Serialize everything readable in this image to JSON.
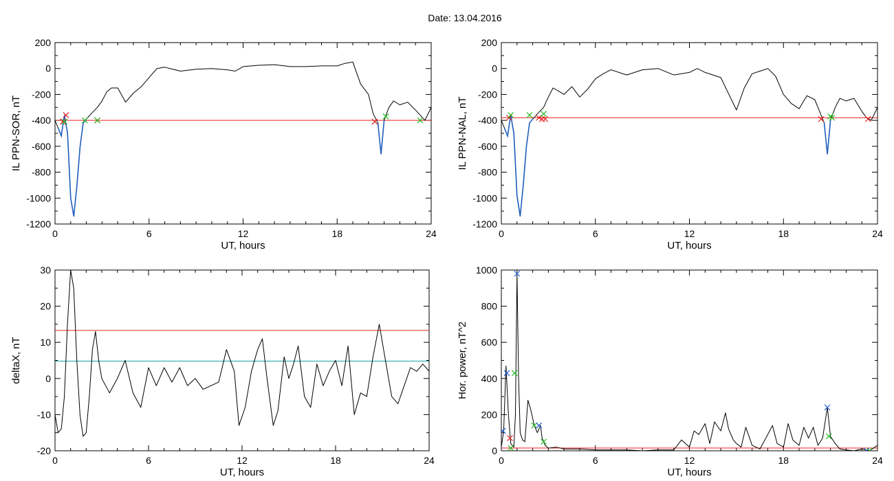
{
  "header": {
    "date_label": "Date:",
    "date_value": "13.04.2016"
  },
  "colors": {
    "trace": "#000000",
    "threshold_red": "#e8231c",
    "threshold_cyan": "#1aa3a3",
    "event_blue": "#1f5fbf",
    "marker_red": "#e02020",
    "marker_green": "#22bb22",
    "marker_blue": "#2060d0"
  },
  "chart_data": [
    {
      "id": "ppn-sor",
      "type": "line",
      "xlabel": "UT, hours",
      "ylabel": "IL PPN-SOR, nT",
      "xlim": [
        0,
        24
      ],
      "ylim": [
        -1200,
        200
      ],
      "xticks": [
        0,
        6,
        12,
        18,
        24
      ],
      "yticks": [
        -1200,
        -1000,
        -800,
        -600,
        -400,
        -200,
        0,
        200
      ],
      "x": [
        0,
        0.2,
        0.4,
        0.6,
        0.8,
        1.0,
        1.2,
        1.4,
        1.6,
        1.8,
        2.0,
        2.3,
        2.7,
        3.0,
        3.3,
        3.6,
        4.0,
        4.5,
        5.0,
        5.5,
        6.0,
        6.5,
        7.0,
        8.0,
        9.0,
        10.0,
        11.0,
        11.5,
        12.0,
        13.0,
        14.0,
        15.0,
        16.0,
        17.0,
        18.0,
        18.5,
        19.0,
        19.5,
        20.0,
        20.3,
        20.6,
        20.8,
        21.0,
        21.3,
        21.6,
        22.0,
        22.5,
        23.0,
        23.3,
        23.6,
        24.0
      ],
      "y": [
        -400,
        -460,
        -520,
        -360,
        -500,
        -1000,
        -1140,
        -900,
        -600,
        -420,
        -390,
        -350,
        -300,
        -250,
        -180,
        -150,
        -150,
        -260,
        -190,
        -140,
        -70,
        0,
        10,
        -20,
        -5,
        0,
        -10,
        -20,
        15,
        25,
        30,
        15,
        15,
        20,
        20,
        40,
        50,
        -120,
        -200,
        -350,
        -420,
        -660,
        -400,
        -300,
        -250,
        -280,
        -260,
        -320,
        -360,
        -400,
        -300
      ],
      "events": [
        {
          "x": [
            0.1,
            1.4
          ],
          "color": "event_blue"
        },
        {
          "x": [
            1.4,
            2.0
          ],
          "color": "event_blue"
        },
        {
          "x": [
            20.4,
            21.0
          ],
          "color": "event_blue"
        }
      ],
      "thresholds": [
        {
          "y": -400,
          "color": "threshold_red"
        }
      ],
      "markers": [
        {
          "x": 0.5,
          "y": -410,
          "color": "marker_red"
        },
        {
          "x": 0.7,
          "y": -360,
          "color": "marker_red"
        },
        {
          "x": 0.6,
          "y": -410,
          "color": "marker_green"
        },
        {
          "x": 1.9,
          "y": -400,
          "color": "marker_green"
        },
        {
          "x": 2.7,
          "y": -400,
          "color": "marker_red"
        },
        {
          "x": 2.7,
          "y": -400,
          "color": "marker_green"
        },
        {
          "x": 20.4,
          "y": -410,
          "color": "marker_red"
        },
        {
          "x": 21.1,
          "y": -370,
          "color": "marker_green"
        },
        {
          "x": 23.3,
          "y": -400,
          "color": "marker_green"
        }
      ]
    },
    {
      "id": "ppn-nal",
      "type": "line",
      "xlabel": "UT, hours",
      "ylabel": "IL PPN-NAL, nT",
      "xlim": [
        0,
        24
      ],
      "ylim": [
        -1200,
        200
      ],
      "xticks": [
        0,
        6,
        12,
        18,
        24
      ],
      "yticks": [
        -1200,
        -1000,
        -800,
        -600,
        -400,
        -200,
        0,
        200
      ],
      "x": [
        0,
        0.2,
        0.4,
        0.6,
        0.8,
        1.0,
        1.2,
        1.4,
        1.6,
        1.8,
        2.0,
        2.3,
        2.7,
        3.0,
        3.3,
        3.6,
        4.0,
        4.5,
        5.0,
        5.5,
        6.0,
        6.5,
        7.0,
        8.0,
        9.0,
        10.0,
        11.0,
        12.0,
        12.5,
        13.0,
        14.0,
        15.0,
        15.5,
        16.0,
        16.5,
        17.0,
        17.5,
        18.0,
        18.5,
        19.0,
        19.5,
        20.0,
        20.3,
        20.6,
        20.8,
        21.0,
        21.3,
        21.6,
        22.0,
        22.5,
        23.0,
        23.3,
        23.6,
        24.0
      ],
      "y": [
        -400,
        -460,
        -520,
        -360,
        -500,
        -980,
        -1140,
        -900,
        -600,
        -420,
        -390,
        -350,
        -300,
        -220,
        -150,
        -170,
        -200,
        -140,
        -220,
        -160,
        -80,
        -40,
        -10,
        -50,
        -10,
        0,
        -50,
        -30,
        0,
        -30,
        -70,
        -320,
        -150,
        -40,
        -20,
        0,
        -60,
        -200,
        -270,
        -310,
        -210,
        -240,
        -330,
        -420,
        -660,
        -400,
        -300,
        -230,
        -250,
        -230,
        -330,
        -380,
        -400,
        -300
      ],
      "events": [
        {
          "x": [
            0.1,
            1.4
          ],
          "color": "event_blue"
        },
        {
          "x": [
            1.4,
            2.0
          ],
          "color": "event_blue"
        },
        {
          "x": [
            20.4,
            21.0
          ],
          "color": "event_blue"
        }
      ],
      "thresholds": [
        {
          "y": -380,
          "color": "threshold_red"
        }
      ],
      "markers": [
        {
          "x": 0.5,
          "y": -380,
          "color": "marker_red"
        },
        {
          "x": 0.6,
          "y": -360,
          "color": "marker_green"
        },
        {
          "x": 1.8,
          "y": -360,
          "color": "marker_green"
        },
        {
          "x": 2.4,
          "y": -380,
          "color": "marker_red"
        },
        {
          "x": 2.6,
          "y": -390,
          "color": "marker_red"
        },
        {
          "x": 2.7,
          "y": -350,
          "color": "marker_green"
        },
        {
          "x": 2.8,
          "y": -390,
          "color": "marker_red"
        },
        {
          "x": 20.4,
          "y": -390,
          "color": "marker_red"
        },
        {
          "x": 21.0,
          "y": -370,
          "color": "marker_green"
        },
        {
          "x": 21.1,
          "y": -380,
          "color": "marker_green"
        },
        {
          "x": 23.4,
          "y": -390,
          "color": "marker_red"
        }
      ]
    },
    {
      "id": "deltax",
      "type": "line",
      "xlabel": "UT, hours",
      "ylabel": "deltaX, nT",
      "xlim": [
        0,
        24
      ],
      "ylim": [
        -20,
        30
      ],
      "xticks": [
        0,
        6,
        12,
        18,
        24
      ],
      "yticks": [
        -20,
        -10,
        0,
        10,
        20,
        30
      ],
      "x": [
        0,
        0.2,
        0.4,
        0.6,
        0.8,
        1.0,
        1.2,
        1.4,
        1.6,
        1.8,
        2.0,
        2.2,
        2.4,
        2.6,
        2.8,
        3.0,
        3.5,
        4.0,
        4.5,
        5.0,
        5.5,
        6.0,
        6.5,
        7.0,
        7.5,
        8.0,
        8.5,
        9.0,
        9.5,
        10.0,
        10.5,
        11.0,
        11.5,
        11.8,
        12.2,
        12.6,
        13.0,
        13.3,
        13.6,
        14.0,
        14.3,
        14.7,
        15.0,
        15.3,
        15.6,
        16.0,
        16.4,
        16.8,
        17.2,
        17.6,
        18.0,
        18.4,
        18.8,
        19.2,
        19.6,
        20.0,
        20.4,
        20.8,
        21.2,
        21.6,
        22.0,
        22.4,
        22.8,
        23.2,
        23.6,
        24.0
      ],
      "y": [
        -10,
        -15,
        -14,
        -5,
        15,
        30,
        25,
        5,
        -10,
        -16,
        -15,
        -5,
        8,
        13,
        5,
        0,
        -4,
        0,
        5,
        -4,
        -8,
        3,
        -2,
        3,
        -1,
        3,
        -2,
        0,
        -3,
        -2,
        -1,
        8,
        2,
        -13,
        -8,
        2,
        8,
        11,
        0,
        -13,
        -9,
        6,
        0,
        4,
        9,
        -5,
        -8,
        4,
        -2,
        2,
        5,
        -2,
        9,
        -10,
        -4,
        -5,
        6,
        15,
        5,
        -5,
        -7,
        -2,
        3,
        2,
        4,
        2
      ],
      "thresholds": [
        {
          "y": 13.3,
          "color": "threshold_red"
        },
        {
          "y": 4.8,
          "color": "threshold_cyan"
        }
      ]
    },
    {
      "id": "hor-power",
      "type": "line",
      "xlabel": "UT, hours",
      "ylabel": "Hor. power, nT^2",
      "xlim": [
        0,
        24
      ],
      "ylim": [
        0,
        1000
      ],
      "xticks": [
        0,
        6,
        12,
        18,
        24
      ],
      "yticks": [
        0,
        200,
        400,
        600,
        800,
        1000
      ],
      "x": [
        0,
        0.15,
        0.3,
        0.45,
        0.6,
        0.8,
        0.9,
        1.0,
        1.1,
        1.2,
        1.35,
        1.5,
        1.7,
        1.9,
        2.1,
        2.3,
        2.5,
        2.6,
        2.8,
        3.0,
        3.5,
        4.0,
        5.0,
        6.0,
        7.0,
        8.0,
        9.0,
        10.0,
        11.0,
        11.5,
        12.0,
        12.3,
        12.6,
        13.0,
        13.3,
        13.6,
        14.0,
        14.3,
        14.5,
        14.8,
        15.0,
        15.3,
        15.6,
        16.0,
        16.5,
        17.0,
        17.3,
        17.6,
        18.0,
        18.3,
        18.6,
        19.0,
        19.3,
        19.6,
        19.9,
        20.2,
        20.5,
        20.8,
        21.0,
        21.3,
        21.6,
        22.0,
        22.5,
        23.0,
        23.5,
        24.0
      ],
      "y": [
        20,
        110,
        470,
        200,
        40,
        20,
        200,
        980,
        400,
        100,
        60,
        50,
        280,
        220,
        140,
        100,
        140,
        70,
        30,
        15,
        20,
        10,
        10,
        5,
        5,
        5,
        0,
        5,
        5,
        60,
        20,
        110,
        90,
        150,
        40,
        160,
        110,
        210,
        120,
        60,
        40,
        20,
        130,
        30,
        10,
        90,
        140,
        40,
        20,
        150,
        60,
        30,
        130,
        70,
        130,
        30,
        70,
        240,
        80,
        40,
        10,
        5,
        0,
        10,
        0,
        30
      ],
      "thresholds": [
        {
          "y": 15,
          "color": "threshold_red"
        }
      ],
      "markers": [
        {
          "x": 0.1,
          "y": 110,
          "color": "marker_blue"
        },
        {
          "x": 0.35,
          "y": 430,
          "color": "marker_blue"
        },
        {
          "x": 0.55,
          "y": 70,
          "color": "marker_red"
        },
        {
          "x": 0.6,
          "y": 15,
          "color": "marker_green"
        },
        {
          "x": 0.85,
          "y": 430,
          "color": "marker_green"
        },
        {
          "x": 1.0,
          "y": 980,
          "color": "marker_blue"
        },
        {
          "x": 2.1,
          "y": 140,
          "color": "marker_green"
        },
        {
          "x": 2.4,
          "y": 140,
          "color": "marker_blue"
        },
        {
          "x": 2.7,
          "y": 50,
          "color": "marker_green"
        },
        {
          "x": 20.8,
          "y": 240,
          "color": "marker_blue"
        },
        {
          "x": 20.9,
          "y": 80,
          "color": "marker_green"
        },
        {
          "x": 23.3,
          "y": 0,
          "color": "marker_blue"
        },
        {
          "x": 23.5,
          "y": 0,
          "color": "marker_green"
        }
      ]
    }
  ]
}
